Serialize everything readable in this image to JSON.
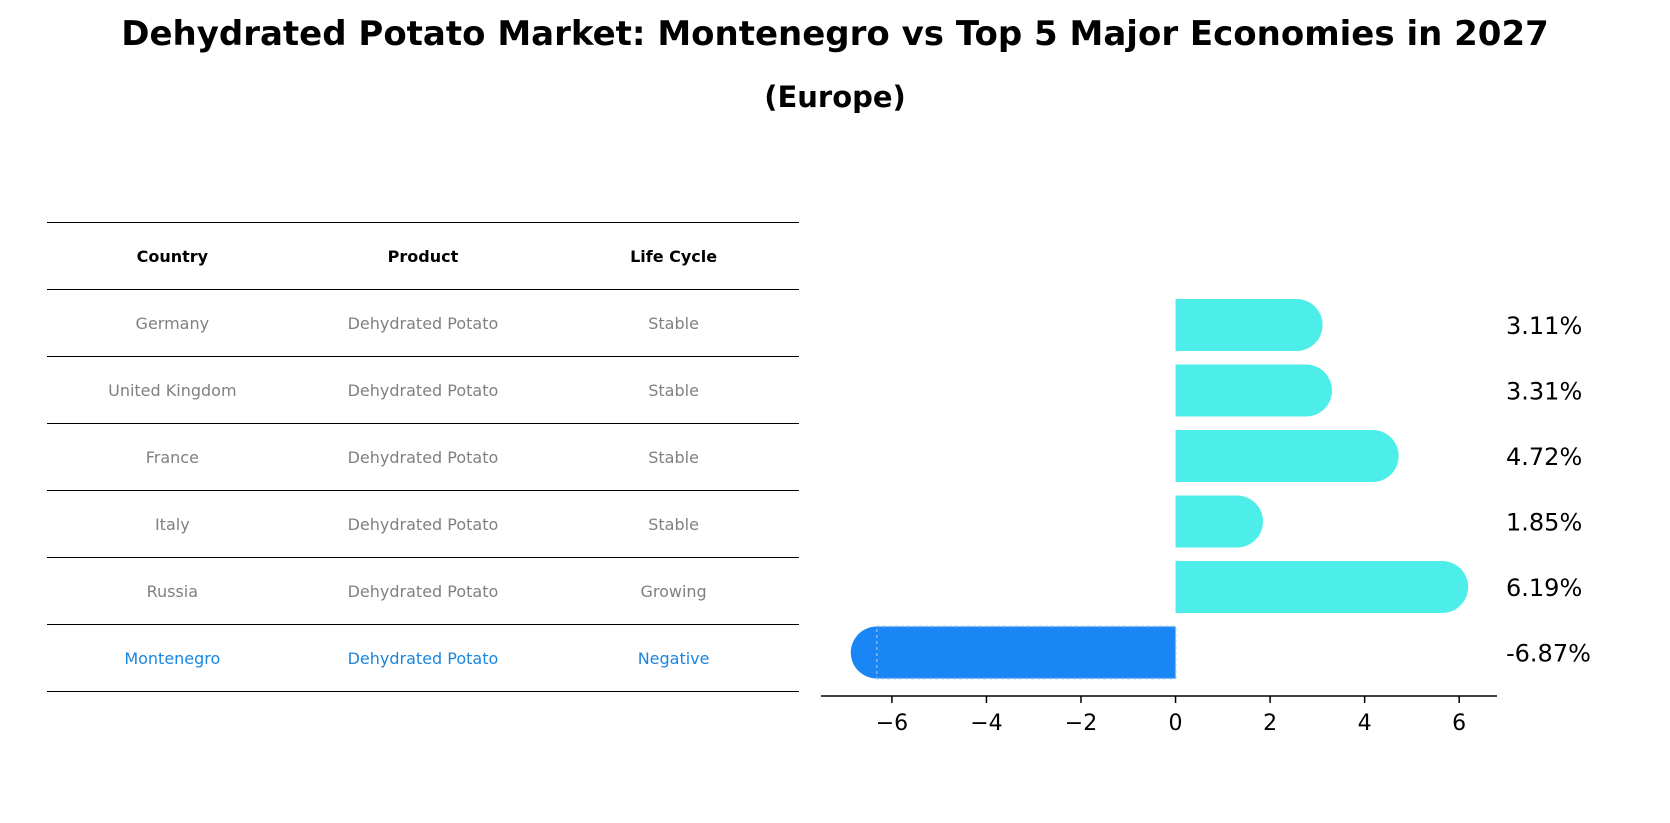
{
  "title": "Dehydrated Potato Market: Montenegro vs Top 5 Major Economies in 2027",
  "subtitle": "(Europe)",
  "table": {
    "headers": [
      "Country",
      "Product",
      "Life Cycle"
    ],
    "rows": [
      [
        "Germany",
        "Dehydrated Potato",
        "Stable"
      ],
      [
        "United Kingdom",
        "Dehydrated Potato",
        "Stable"
      ],
      [
        "France",
        "Dehydrated Potato",
        "Stable"
      ],
      [
        "Italy",
        "Dehydrated Potato",
        "Stable"
      ],
      [
        "Russia",
        "Dehydrated Potato",
        "Growing"
      ],
      [
        "Montenegro",
        "Dehydrated Potato",
        "Negative"
      ]
    ]
  },
  "chart_data": {
    "type": "bar",
    "orientation": "horizontal",
    "categories": [
      "Germany",
      "United Kingdom",
      "France",
      "Italy",
      "Russia",
      "Montenegro"
    ],
    "values": [
      3.11,
      3.31,
      4.72,
      1.85,
      6.19,
      -6.87
    ],
    "value_labels": [
      "3.11%",
      "3.31%",
      "4.72%",
      "1.85%",
      "6.19%",
      "-6.87%"
    ],
    "xlim": [
      -7.5,
      6.8
    ],
    "xticks": [
      -6,
      -4,
      -2,
      0,
      2,
      4,
      6
    ],
    "xtick_labels": [
      "−6",
      "−4",
      "−2",
      "0",
      "2",
      "4",
      "6"
    ],
    "colors": {
      "positive": "#4deeea",
      "highlight": "#1a86f5"
    },
    "grid": false
  }
}
